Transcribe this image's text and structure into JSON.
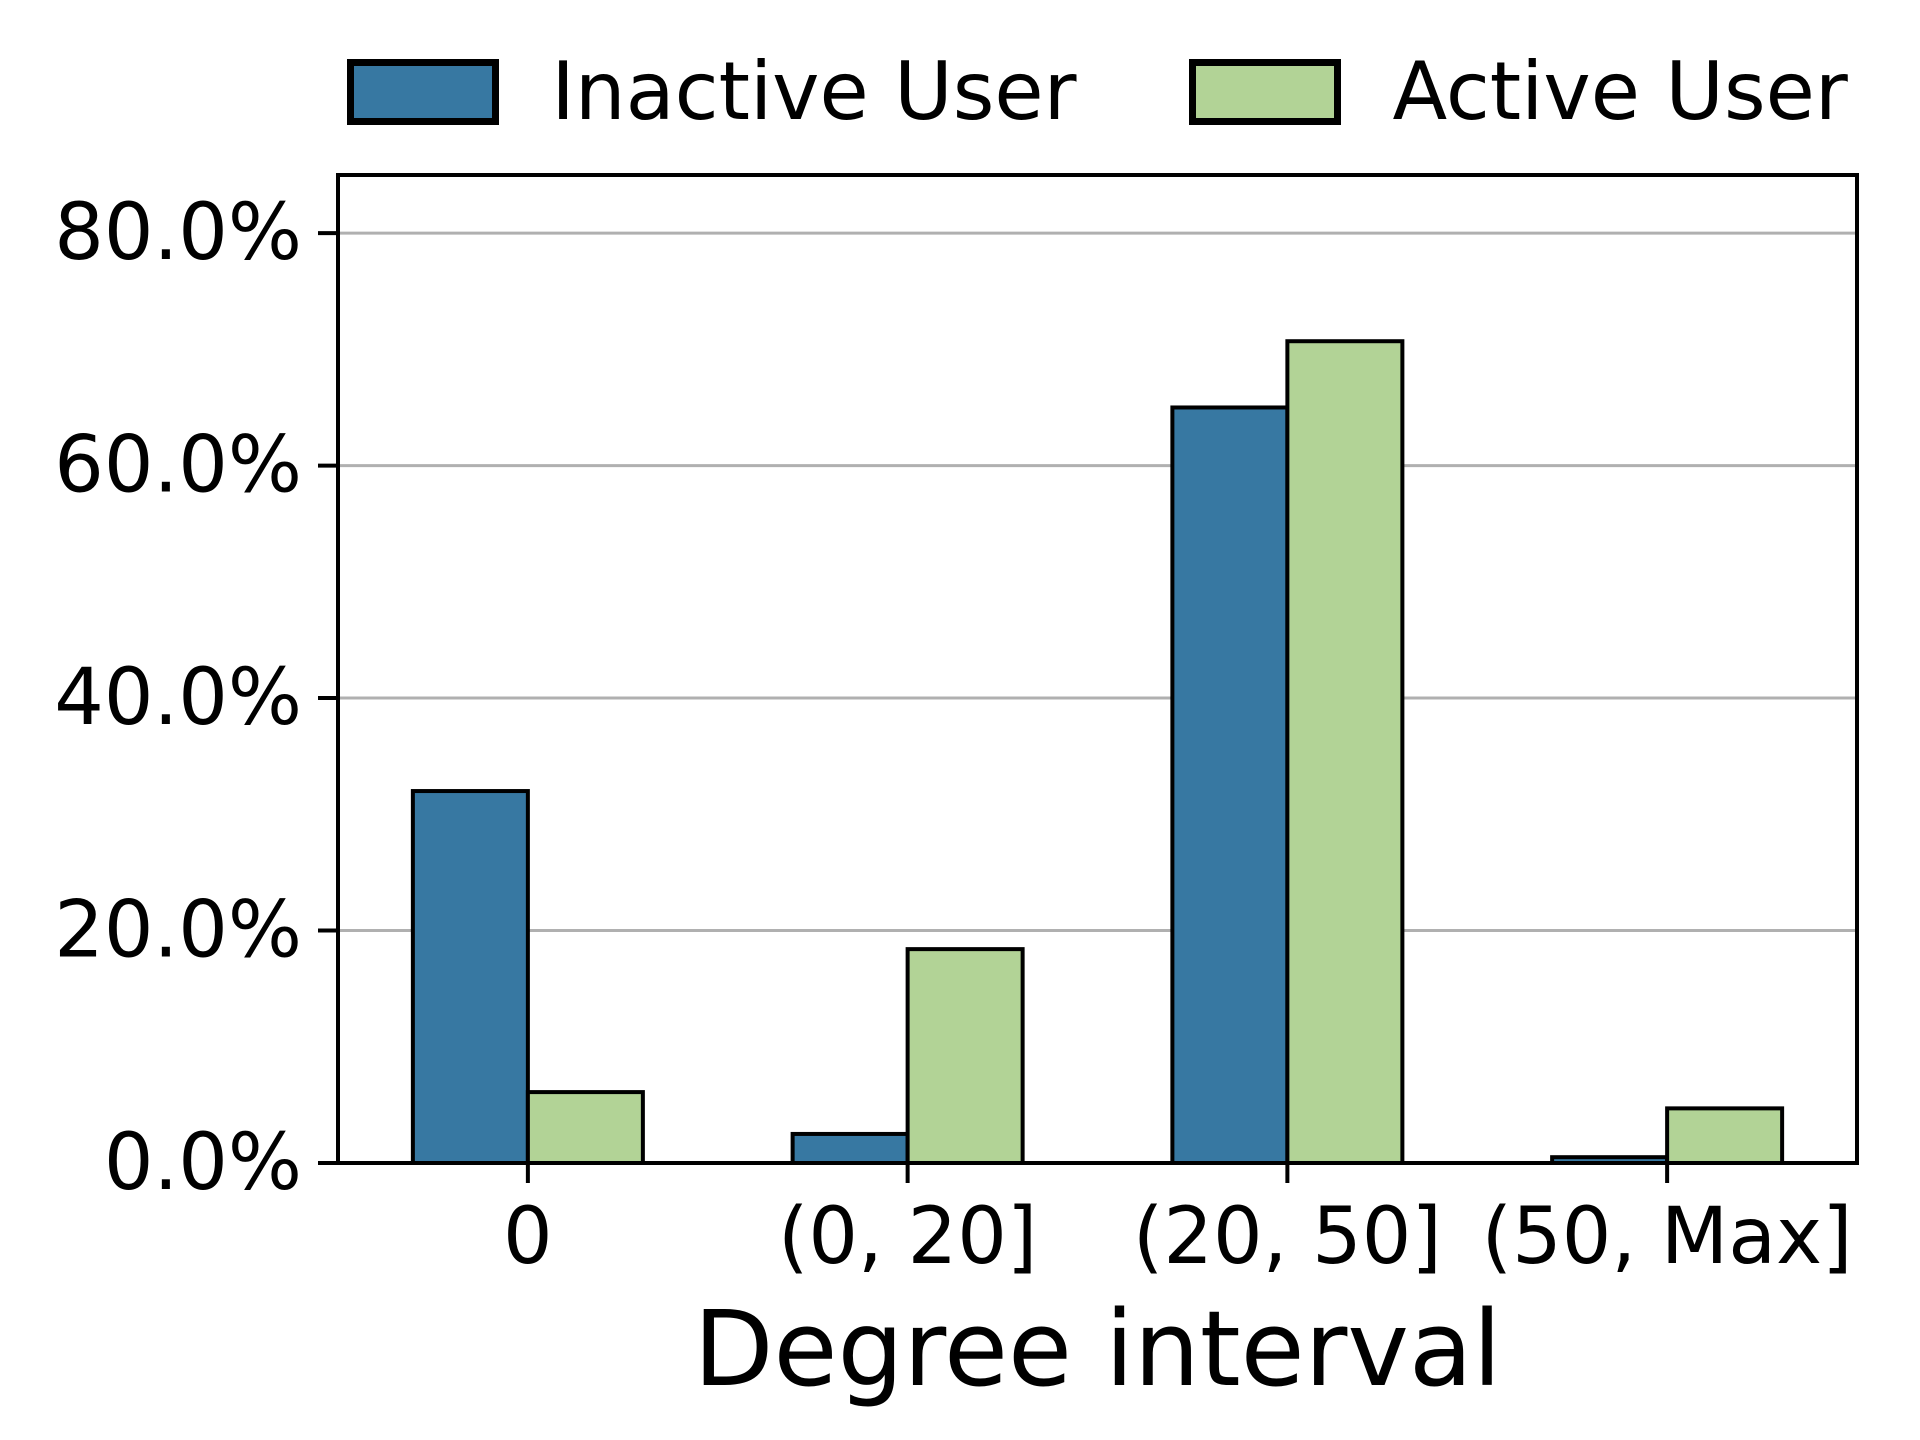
{
  "chart_data": {
    "type": "bar",
    "title": "",
    "xlabel": "Degree interval",
    "ylabel": "",
    "categories": [
      "0",
      "(0, 20]",
      "(20, 50]",
      "(50, Max]"
    ],
    "series": [
      {
        "name": "Inactive User",
        "color": "#3778a2",
        "values": [
          32.0,
          2.5,
          65.0,
          0.5
        ]
      },
      {
        "name": "Active User",
        "color": "#b2d396",
        "values": [
          6.1,
          18.4,
          70.7,
          4.7
        ]
      }
    ],
    "value_unit": "%",
    "y_ticks": [
      {
        "value": 0,
        "label": "0.0%"
      },
      {
        "value": 20,
        "label": "20.0%"
      },
      {
        "value": 40,
        "label": "40.0%"
      },
      {
        "value": 60,
        "label": "60.0%"
      },
      {
        "value": 80,
        "label": "80.0%"
      }
    ],
    "ylim": [
      0,
      85
    ],
    "grid": true,
    "grid_color": "#b0b0b0",
    "bar_edge_color": "#000000",
    "legend_position": "top-center"
  }
}
